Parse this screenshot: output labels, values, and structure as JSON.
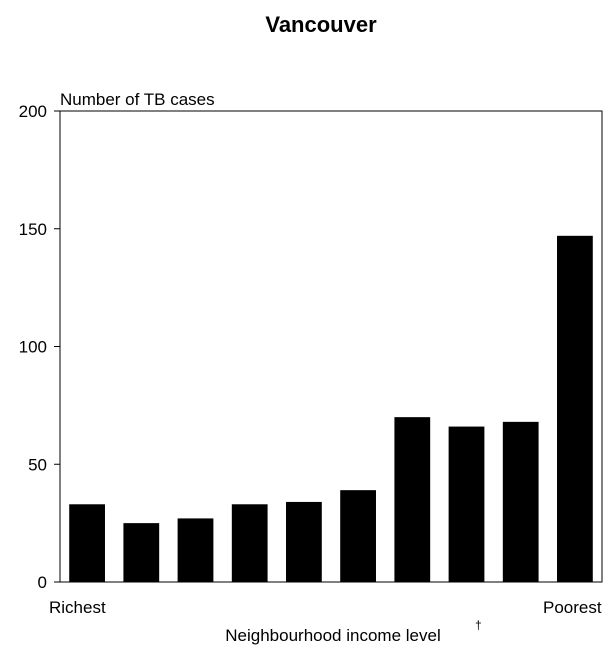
{
  "chart_data": {
    "type": "bar",
    "title": "Vancouver",
    "ylabel": "Number of TB cases",
    "xlabel": "Neighbourhood income level",
    "xlabel_marker": "†",
    "x_end_labels": [
      "Richest",
      "Poorest"
    ],
    "categories": [
      "1",
      "2",
      "3",
      "4",
      "5",
      "6",
      "7",
      "8",
      "9",
      "10"
    ],
    "values": [
      33,
      25,
      27,
      33,
      34,
      39,
      70,
      66,
      68,
      147
    ],
    "ylim": [
      0,
      200
    ],
    "yticks": [
      0,
      50,
      100,
      150,
      200
    ],
    "grid": false,
    "legend": "none",
    "bar_color": "#000000"
  }
}
